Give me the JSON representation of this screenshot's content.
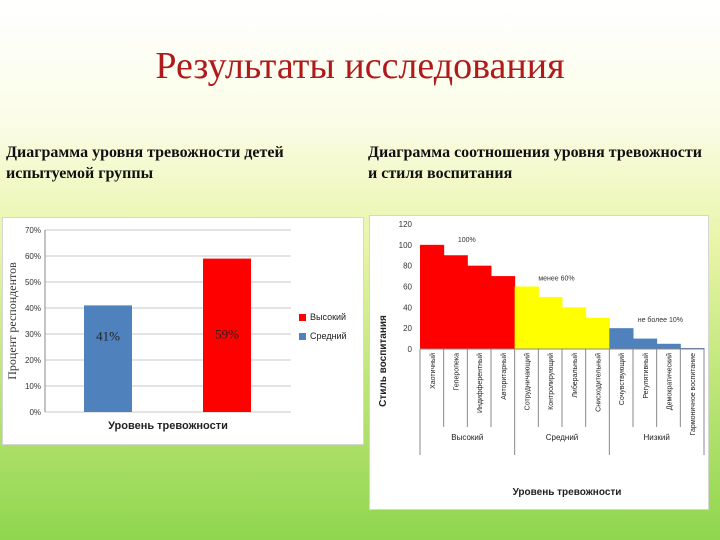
{
  "title": "Результаты исследования",
  "subtitle_left": "Диаграмма уровня тревожности детей испытуемой группы",
  "subtitle_right": "Диаграмма соотношения уровня тревожности и стиля воспитания",
  "chart_data": [
    {
      "type": "bar",
      "xlabel": "Уровень тревожности",
      "ylabel": "Процент респондентов",
      "ylim": [
        0,
        70
      ],
      "yticks": [
        "0%",
        "10%",
        "20%",
        "30%",
        "40%",
        "50%",
        "60%",
        "70%"
      ],
      "grid": true,
      "legend_position": "right",
      "series": [
        {
          "name": "Высокий",
          "value": 59,
          "label": "59%",
          "color": "#ff0000"
        },
        {
          "name": "Средний",
          "value": 41,
          "label": "41%",
          "color": "#4f81bd"
        }
      ]
    },
    {
      "type": "bar",
      "xlabel": "Уровень тревожности",
      "ylabel": "Стиль воспитания",
      "ylim": [
        0,
        120
      ],
      "yticks": [
        "0",
        "20",
        "40",
        "60",
        "80",
        "100",
        "120"
      ],
      "grid": false,
      "groups": [
        {
          "name": "Высокий",
          "annotation": "100%",
          "color": "#ff0000",
          "categories": [
            "Хаотичный",
            "Геперопека",
            "Индифферентный",
            "Авторитарный"
          ],
          "values": [
            100,
            90,
            80,
            70
          ]
        },
        {
          "name": "Средний",
          "annotation": "менее 60%",
          "color": "#ffff00",
          "categories": [
            "Сотрудничающий",
            "Контролирующий",
            "Либеральный",
            "Снисходительный"
          ],
          "values": [
            60,
            50,
            40,
            30
          ]
        },
        {
          "name": "Низкий",
          "annotation": "не более 10%",
          "color": "#4f81bd",
          "categories": [
            "Сочувствующий",
            "Регулятивный",
            "Демократический",
            "Гармоничное воспитание"
          ],
          "values": [
            20,
            10,
            5,
            1
          ]
        }
      ]
    }
  ]
}
